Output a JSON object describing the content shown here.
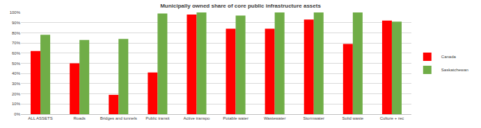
{
  "chart_data": {
    "type": "bar",
    "title": "Municipally owned share of core public infrastructure assets",
    "categories": [
      "ALL ASSETS",
      "Roads",
      "Bridges and tunnels",
      "Public transit",
      "Active transpo",
      "Potable water",
      "Wastewater",
      "Stormwater",
      "Solid waste",
      "Culture + rec"
    ],
    "series": [
      {
        "name": "Canada",
        "color": "#ff0000",
        "values": [
          62,
          50,
          19,
          41,
          98,
          84,
          84,
          93,
          69,
          92
        ]
      },
      {
        "name": "Saskatchewan",
        "color": "#70ad47",
        "values": [
          78,
          73,
          74,
          99,
          100,
          97,
          100,
          100,
          100,
          91
        ]
      }
    ],
    "ylim": [
      0,
      100
    ],
    "yticks": [
      {
        "value": 0,
        "label": "0%"
      },
      {
        "value": 10,
        "label": "10%"
      },
      {
        "value": 20,
        "label": "20%"
      },
      {
        "value": 30,
        "label": "30%"
      },
      {
        "value": 40,
        "label": "40%"
      },
      {
        "value": 50,
        "label": "50%"
      },
      {
        "value": 60,
        "label": "60%"
      },
      {
        "value": 70,
        "label": "70%"
      },
      {
        "value": 80,
        "label": "80%"
      },
      {
        "value": 90,
        "label": "90%"
      },
      {
        "value": 100,
        "label": "100%"
      }
    ],
    "grid": true,
    "legend": "right"
  }
}
